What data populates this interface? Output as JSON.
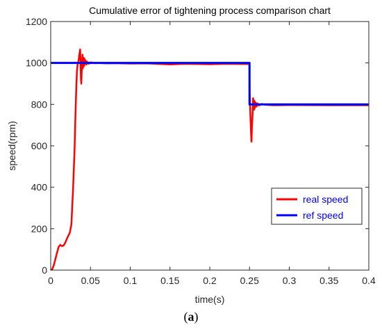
{
  "caption": {
    "open": "(",
    "letter": "a",
    "close": ")"
  },
  "chart_data": {
    "type": "line",
    "title": "Cumulative error of tightening process comparison chart",
    "xlabel": "time(s)",
    "ylabel": "speed(rpm)",
    "xlim": [
      0,
      0.4
    ],
    "ylim": [
      0,
      1200
    ],
    "xticks": [
      0,
      0.05,
      0.1,
      0.15,
      0.2,
      0.25,
      0.3,
      0.35,
      0.4
    ],
    "xtick_labels": [
      "0",
      "0.05",
      "0.1",
      "0.15",
      "0.2",
      "0.25",
      "0.3",
      "0.35",
      "0.4"
    ],
    "yticks": [
      0,
      200,
      400,
      600,
      800,
      1000,
      1200
    ],
    "ytick_labels": [
      "0",
      "200",
      "400",
      "600",
      "800",
      "1000",
      "1200"
    ],
    "grid": false,
    "legend_position": "lower-right",
    "series": [
      {
        "name": "real speed",
        "color": "#ff0000",
        "x": [
          0,
          0.002,
          0.004,
          0.006,
          0.008,
          0.01,
          0.012,
          0.014,
          0.016,
          0.018,
          0.02,
          0.022,
          0.024,
          0.026,
          0.028,
          0.03,
          0.031,
          0.032,
          0.033,
          0.034,
          0.035,
          0.036,
          0.037,
          0.0375,
          0.038,
          0.0385,
          0.039,
          0.0395,
          0.04,
          0.0405,
          0.041,
          0.0415,
          0.042,
          0.0425,
          0.043,
          0.044,
          0.045,
          0.046,
          0.048,
          0.05,
          0.055,
          0.06,
          0.07,
          0.08,
          0.1,
          0.12,
          0.15,
          0.17,
          0.2,
          0.22,
          0.24,
          0.2498,
          0.2502,
          0.251,
          0.252,
          0.2525,
          0.253,
          0.254,
          0.2545,
          0.255,
          0.2555,
          0.256,
          0.2565,
          0.257,
          0.258,
          0.259,
          0.26,
          0.262,
          0.265,
          0.27,
          0.28,
          0.3,
          0.35,
          0.4
        ],
        "y": [
          0,
          5,
          25,
          55,
          85,
          112,
          122,
          116,
          118,
          130,
          148,
          165,
          180,
          220,
          380,
          580,
          730,
          860,
          960,
          1000,
          1010,
          1040,
          1065,
          1010,
          925,
          900,
          960,
          1000,
          1040,
          975,
          1000,
          1025,
          985,
          1020,
          995,
          1012,
          992,
          1006,
          996,
          1003,
          999,
          1000,
          998,
          999,
          997,
          998,
          993,
          996,
          994,
          996,
          995,
          995,
          860,
          760,
          655,
          620,
          690,
          760,
          830,
          780,
          820,
          775,
          815,
          785,
          808,
          790,
          805,
          795,
          802,
          798,
          796,
          797,
          796,
          796
        ]
      },
      {
        "name": "ref speed",
        "color": "#0000ff",
        "x": [
          0,
          0.25,
          0.25,
          0.4
        ],
        "y": [
          1000,
          1000,
          800,
          800
        ]
      }
    ]
  }
}
